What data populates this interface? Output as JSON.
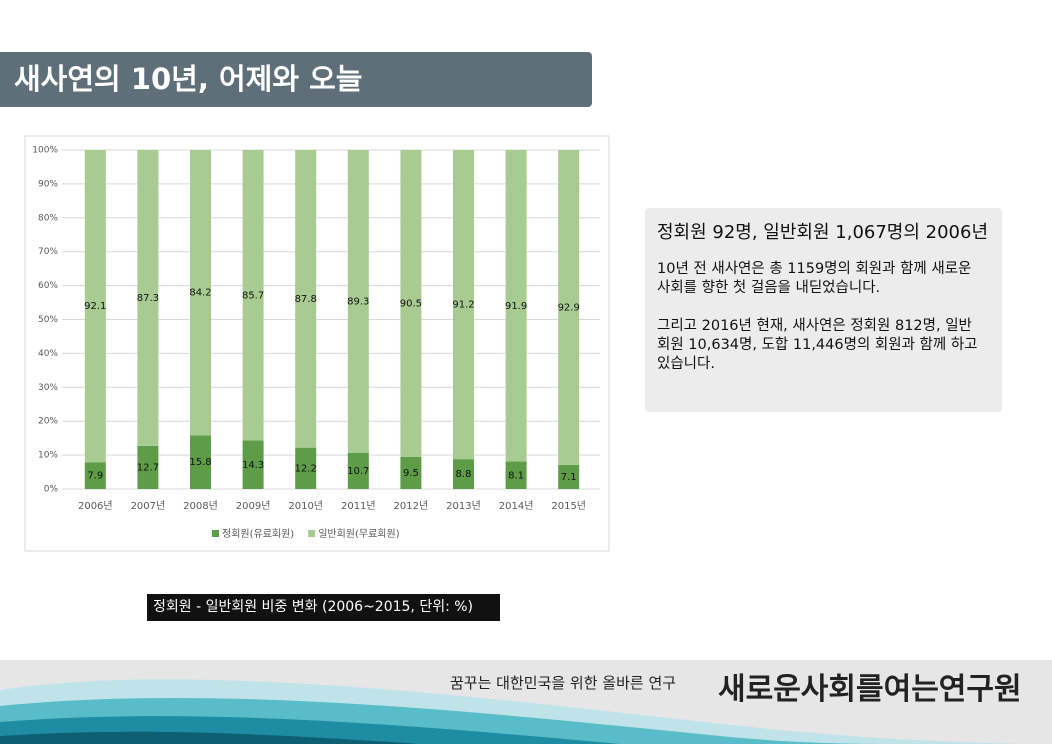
{
  "slide_title": "새사연의 10년, 어제와 오늘",
  "chart_data": {
    "type": "stacked_bar",
    "categories": [
      "2006년",
      "2007년",
      "2008년",
      "2009년",
      "2010년",
      "2011년",
      "2012년",
      "2013년",
      "2014년",
      "2015년"
    ],
    "series": [
      {
        "name": "정회원(유료회원)",
        "color": "#5e9c47",
        "values": [
          7.9,
          12.7,
          15.8,
          14.3,
          12.2,
          10.7,
          9.5,
          8.8,
          8.1,
          7.1
        ]
      },
      {
        "name": "일반회원(무료회원)",
        "color": "#a8cb92",
        "values": [
          92.1,
          87.3,
          84.2,
          85.7,
          87.8,
          89.3,
          90.5,
          91.2,
          91.9,
          92.9
        ]
      }
    ],
    "ylim": [
      0,
      100
    ],
    "yticks": [
      {
        "value": 0,
        "label": "0%"
      },
      {
        "value": 10,
        "label": "10%"
      },
      {
        "value": 20,
        "label": "20%"
      },
      {
        "value": 30,
        "label": "30%"
      },
      {
        "value": 40,
        "label": "40%"
      },
      {
        "value": 50,
        "label": "50%"
      },
      {
        "value": 60,
        "label": "60%"
      },
      {
        "value": 70,
        "label": "70%"
      },
      {
        "value": 80,
        "label": "80%"
      },
      {
        "value": 90,
        "label": "90%"
      },
      {
        "value": 100,
        "label": "100%"
      }
    ],
    "grid": true,
    "legend": "bottom"
  },
  "text_box": {
    "heading": "정회원 92명, 일반회원 1,067명의 2006년",
    "paragraphs": [
      [
        "10년 전 새사연은 총 1159명의 회원과 함께 새로운",
        "사회를 향한 첫 걸음을 내딛었습니다."
      ],
      [
        "그리고 2016년 현재, 새사연은 정회원 812명, 일반",
        "회원 10,634명, 도합 11,446명의 회원과 함께 하고",
        "있습니다."
      ]
    ]
  },
  "caption": "정회원 - 일반회원 비중 변화 (2006~2015, 단위: %)",
  "footer": {
    "slogan": "꿈꾸는 대한민국을 위한 올바른 연구",
    "organization": "새로운사회를여는연구원"
  }
}
